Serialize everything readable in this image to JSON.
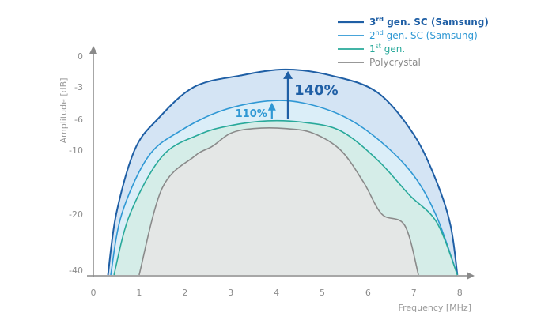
{
  "chart_data": {
    "type": "area",
    "xlabel": "Frequency [MHz]",
    "ylabel": "Amplitude [dB]",
    "xlim": [
      0,
      8
    ],
    "ylim": [
      -40,
      0
    ],
    "x_ticks": [
      "0",
      "1",
      "2",
      "3",
      "4",
      "5",
      "6",
      "7",
      "8"
    ],
    "y_ticks": [
      "0",
      "-3",
      "-6",
      "-10",
      "-20",
      "-40"
    ],
    "legend_position": "top-right",
    "series": [
      {
        "name": "3rd gen. SC (Samsung)",
        "color": "#1f5fa5",
        "fill": "#cfe1f3",
        "points": [
          [
            0.32,
            -40
          ],
          [
            0.5,
            -20
          ],
          [
            0.9,
            -10
          ],
          [
            1.4,
            -6
          ],
          [
            2.2,
            -3
          ],
          [
            3.2,
            -1.9
          ],
          [
            4.2,
            -1.3
          ],
          [
            5.2,
            -1.9
          ],
          [
            6.2,
            -3.5
          ],
          [
            7.0,
            -8
          ],
          [
            7.5,
            -15
          ],
          [
            7.8,
            -24
          ],
          [
            7.95,
            -40
          ]
        ]
      },
      {
        "name": "2nd gen. SC (Samsung)",
        "color": "#2f98d4",
        "fill": "#dbeef8",
        "points": [
          [
            0.38,
            -40
          ],
          [
            0.62,
            -20
          ],
          [
            1.2,
            -11
          ],
          [
            1.9,
            -7.5
          ],
          [
            2.8,
            -5.2
          ],
          [
            3.8,
            -4.3
          ],
          [
            4.6,
            -4.5
          ],
          [
            5.5,
            -5.8
          ],
          [
            6.3,
            -9
          ],
          [
            7.0,
            -14
          ],
          [
            7.5,
            -21
          ],
          [
            7.95,
            -40
          ]
        ]
      },
      {
        "name": "1st gen.",
        "color": "#28a99a",
        "fill": "#d4ece6",
        "points": [
          [
            0.45,
            -40
          ],
          [
            0.8,
            -20
          ],
          [
            1.5,
            -11
          ],
          [
            2.3,
            -8
          ],
          [
            3.0,
            -6.8
          ],
          [
            3.8,
            -6.2
          ],
          [
            4.6,
            -6.4
          ],
          [
            5.4,
            -7.5
          ],
          [
            6.2,
            -11.5
          ],
          [
            6.9,
            -17
          ],
          [
            7.5,
            -23
          ],
          [
            7.95,
            -40
          ]
        ]
      },
      {
        "name": "Polycrystal",
        "color": "#8a8a8a",
        "fill": "#e6e6e6",
        "points": [
          [
            1.0,
            -40
          ],
          [
            1.5,
            -16
          ],
          [
            2.2,
            -11
          ],
          [
            2.6,
            -9.5
          ],
          [
            3.0,
            -7.8
          ],
          [
            3.5,
            -7.2
          ],
          [
            4.2,
            -7.2
          ],
          [
            4.8,
            -7.8
          ],
          [
            5.4,
            -10
          ],
          [
            5.9,
            -15
          ],
          [
            6.3,
            -20
          ],
          [
            6.8,
            -24
          ],
          [
            7.1,
            -40
          ]
        ]
      }
    ],
    "annotations": [
      {
        "label": "140%",
        "x": 4.25,
        "from_y": -6,
        "to_y": -1.3,
        "color": "#1f5fa5"
      },
      {
        "label": "110%",
        "x": 3.9,
        "from_y": -6,
        "to_y": -4.3,
        "color": "#2f98d4"
      }
    ]
  },
  "legend": [
    {
      "base": "3",
      "sup": "rd",
      "rest": " gen. SC (Samsung)",
      "bold": true,
      "color": "#1f5fa5",
      "text_color": "#1f5fa5"
    },
    {
      "base": "2",
      "sup": "nd",
      "rest": " gen. SC (Samsung)",
      "bold": false,
      "color": "#2f98d4",
      "text_color": "#2f98d4"
    },
    {
      "base": "1",
      "sup": "st",
      "rest": " gen.",
      "bold": false,
      "color": "#28a99a",
      "text_color": "#28a99a"
    },
    {
      "base": "Polycrystal",
      "sup": "",
      "rest": "",
      "bold": false,
      "color": "#8a8a8a",
      "text_color": "#8a8a8a"
    }
  ]
}
